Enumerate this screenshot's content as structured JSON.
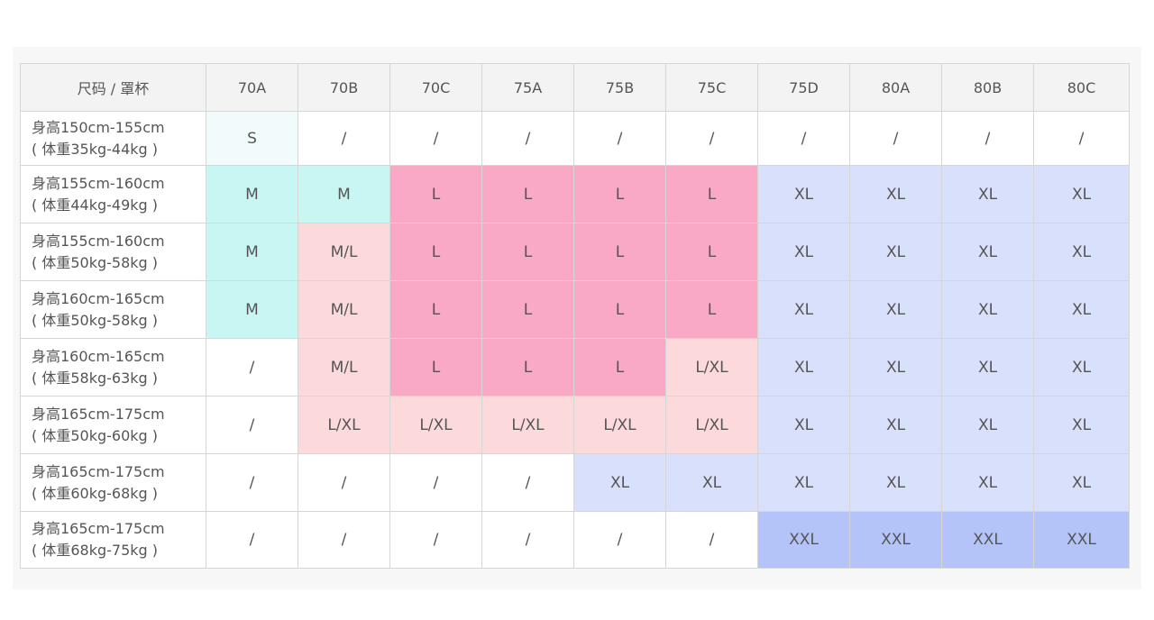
{
  "colors": {
    "S": "#f2fbfc",
    "M": "#c8f6f2",
    "M/L": "#fcd9db",
    "L": "#f9a9c6",
    "L/XL": "#fcd9db",
    "XL": "#d8e0fb",
    "XXL": "#b4c4f8",
    "/": "#ffffff"
  },
  "table": {
    "corner_header": "尺码 / 罩杯",
    "columns": [
      "70A",
      "70B",
      "70C",
      "75A",
      "75B",
      "75C",
      "75D",
      "80A",
      "80B",
      "80C"
    ],
    "rows": [
      {
        "height": "身高150cm-155cm",
        "weight": "( 体重35kg-44kg )",
        "cells": [
          "S",
          "/",
          "/",
          "/",
          "/",
          "/",
          "/",
          "/",
          "/",
          "/"
        ]
      },
      {
        "height": "身高155cm-160cm",
        "weight": "( 体重44kg-49kg )",
        "cells": [
          "M",
          "M",
          "L",
          "L",
          "L",
          "L",
          "XL",
          "XL",
          "XL",
          "XL"
        ]
      },
      {
        "height": "身高155cm-160cm",
        "weight": "( 体重50kg-58kg )",
        "cells": [
          "M",
          "M/L",
          "L",
          "L",
          "L",
          "L",
          "XL",
          "XL",
          "XL",
          "XL"
        ]
      },
      {
        "height": "身高160cm-165cm",
        "weight": "( 体重50kg-58kg )",
        "cells": [
          "M",
          "M/L",
          "L",
          "L",
          "L",
          "L",
          "XL",
          "XL",
          "XL",
          "XL"
        ]
      },
      {
        "height": "身高160cm-165cm",
        "weight": "( 体重58kg-63kg )",
        "cells": [
          "/",
          "M/L",
          "L",
          "L",
          "L",
          "L/XL",
          "XL",
          "XL",
          "XL",
          "XL"
        ]
      },
      {
        "height": "身高165cm-175cm",
        "weight": "( 体重50kg-60kg )",
        "cells": [
          "/",
          "L/XL",
          "L/XL",
          "L/XL",
          "L/XL",
          "L/XL",
          "XL",
          "XL",
          "XL",
          "XL"
        ]
      },
      {
        "height": "身高165cm-175cm",
        "weight": "( 体重60kg-68kg )",
        "cells": [
          "/",
          "/",
          "/",
          "/",
          "XL",
          "XL",
          "XL",
          "XL",
          "XL",
          "XL"
        ]
      },
      {
        "height": "身高165cm-175cm",
        "weight": "( 体重68kg-75kg )",
        "cells": [
          "/",
          "/",
          "/",
          "/",
          "/",
          "/",
          "XXL",
          "XXL",
          "XXL",
          "XXL"
        ]
      }
    ]
  }
}
